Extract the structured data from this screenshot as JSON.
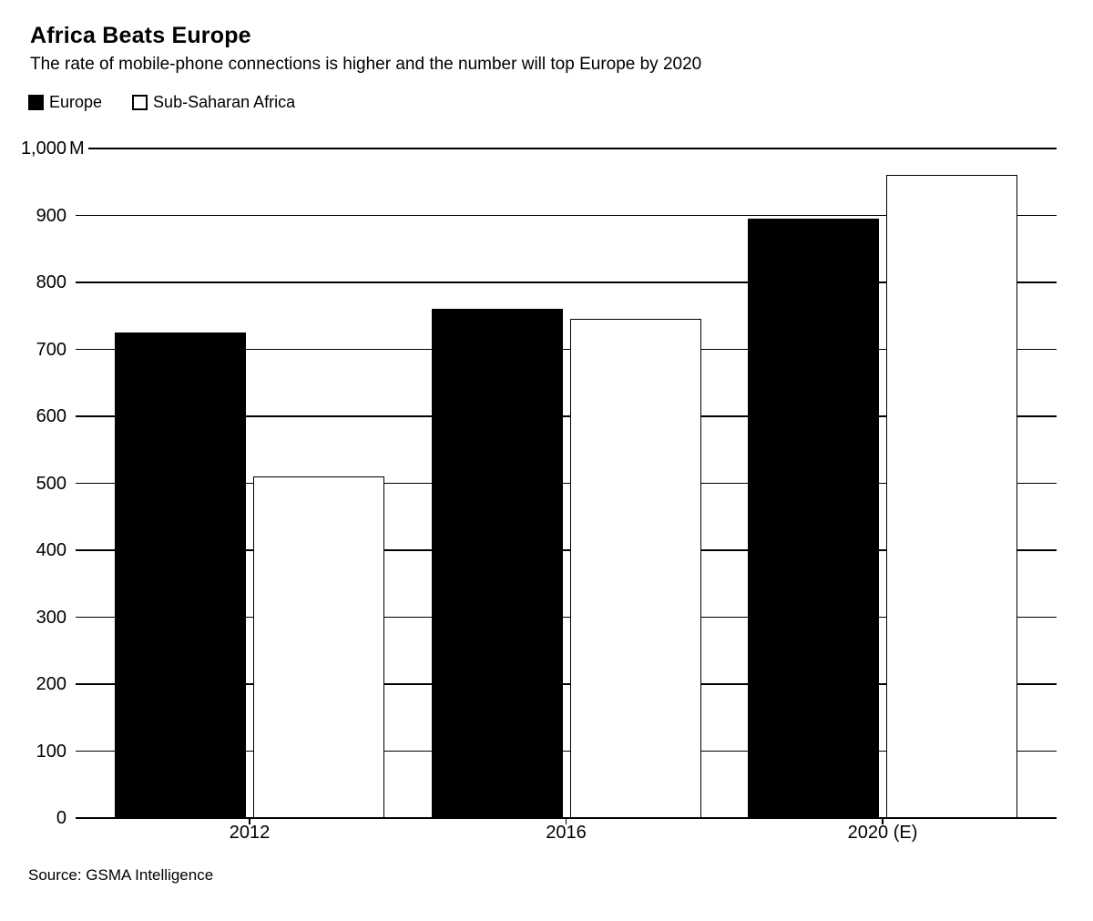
{
  "chart_data": {
    "type": "bar",
    "title": "Africa Beats Europe",
    "subtitle": "The rate of mobile-phone connections is higher and the number will top Europe by 2020",
    "source": "Source: GSMA Intelligence",
    "categories": [
      "2012",
      "2016",
      "2020 (E)"
    ],
    "series": [
      {
        "name": "Europe",
        "values": [
          725,
          760,
          895
        ],
        "fill": "#000000",
        "outline": false
      },
      {
        "name": "Sub-Saharan Africa",
        "values": [
          510,
          745,
          960
        ],
        "fill": "#ffffff",
        "outline": true
      }
    ],
    "unit": "M",
    "ylim": [
      0,
      1000
    ],
    "ytick_step": 100,
    "ytick_labels": [
      "0",
      "100",
      "200",
      "300",
      "400",
      "500",
      "600",
      "700",
      "800",
      "900",
      "1,000M"
    ],
    "grid": "horizontal",
    "legend_position": "top-left",
    "colors": {
      "bar_fill_europe": "#000000",
      "bar_fill_africa": "#ffffff",
      "axis": "#000000",
      "text": "#000000",
      "background": "#ffffff"
    }
  }
}
